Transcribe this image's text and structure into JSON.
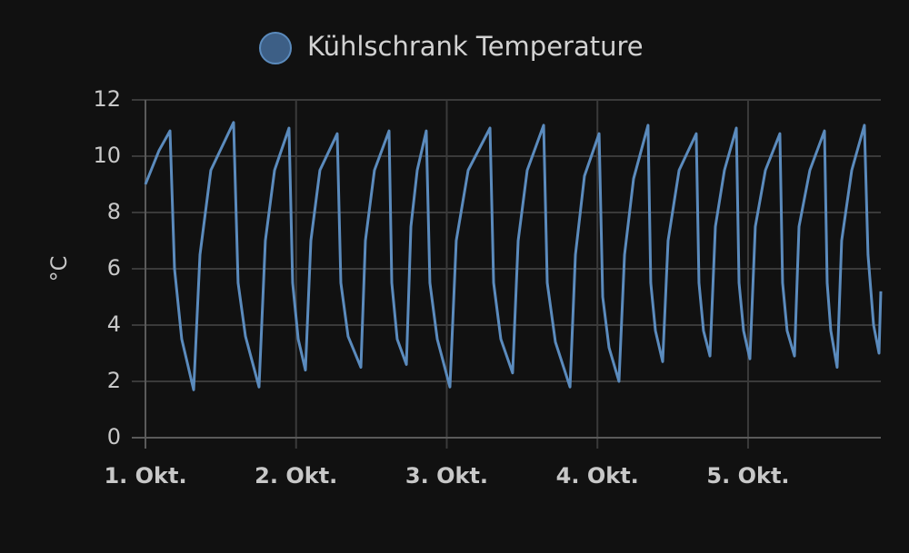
{
  "chart_data": {
    "type": "line",
    "y_label": "°C",
    "series": [
      {
        "name": "Kühlschrank Temperature",
        "color": "#5b8bbd",
        "x": [
          1.0,
          1.09,
          1.163,
          1.193,
          1.241,
          1.32,
          1.362,
          1.434,
          1.585,
          1.615,
          1.664,
          1.754,
          1.796,
          1.857,
          1.953,
          1.977,
          2.014,
          2.062,
          2.098,
          2.158,
          2.273,
          2.297,
          2.345,
          2.43,
          2.46,
          2.52,
          2.617,
          2.635,
          2.671,
          2.732,
          2.762,
          2.804,
          2.864,
          2.888,
          2.937,
          3.021,
          3.063,
          3.142,
          3.287,
          3.311,
          3.359,
          3.437,
          3.474,
          3.534,
          3.643,
          3.667,
          3.721,
          3.818,
          3.854,
          3.914,
          4.011,
          4.035,
          4.077,
          4.143,
          4.18,
          4.24,
          4.336,
          4.354,
          4.385,
          4.433,
          4.469,
          4.542,
          4.656,
          4.674,
          4.704,
          4.747,
          4.783,
          4.843,
          4.922,
          4.94,
          4.97,
          5.012,
          5.048,
          5.115,
          5.211,
          5.229,
          5.259,
          5.308,
          5.338,
          5.41,
          5.507,
          5.525,
          5.549,
          5.591,
          5.621,
          5.688,
          5.772,
          5.796,
          5.833,
          5.869,
          5.881
        ],
        "values": [
          9.0,
          10.2,
          10.9,
          6.0,
          3.5,
          1.7,
          6.5,
          9.5,
          11.2,
          5.5,
          3.6,
          1.8,
          7.0,
          9.5,
          11.0,
          5.5,
          3.5,
          2.4,
          7.0,
          9.5,
          10.8,
          5.5,
          3.6,
          2.5,
          7.0,
          9.5,
          10.9,
          5.5,
          3.5,
          2.6,
          7.5,
          9.5,
          10.9,
          5.5,
          3.5,
          1.8,
          7.0,
          9.5,
          11.0,
          5.5,
          3.5,
          2.3,
          7.0,
          9.5,
          11.1,
          5.5,
          3.4,
          1.8,
          6.5,
          9.3,
          10.8,
          5.0,
          3.2,
          2.0,
          6.5,
          9.2,
          11.1,
          5.5,
          3.8,
          2.7,
          7.0,
          9.5,
          10.8,
          5.5,
          3.8,
          2.9,
          7.5,
          9.5,
          11.0,
          5.5,
          3.8,
          2.8,
          7.5,
          9.5,
          10.8,
          5.5,
          3.8,
          2.9,
          7.5,
          9.5,
          10.9,
          5.5,
          3.8,
          2.5,
          7.0,
          9.5,
          11.1,
          6.5,
          4.0,
          3.0,
          5.2
        ]
      }
    ],
    "xlim": [
      1,
      5.881
    ],
    "xticks": [
      {
        "value": 1,
        "label": "1. Okt."
      },
      {
        "value": 2,
        "label": "2. Okt."
      },
      {
        "value": 3,
        "label": "3. Okt."
      },
      {
        "value": 4,
        "label": "4. Okt."
      },
      {
        "value": 5,
        "label": "5. Okt."
      }
    ],
    "ylim": [
      0,
      12
    ],
    "yticks": [
      0,
      2,
      4,
      6,
      8,
      10,
      12
    ],
    "grid": true
  }
}
